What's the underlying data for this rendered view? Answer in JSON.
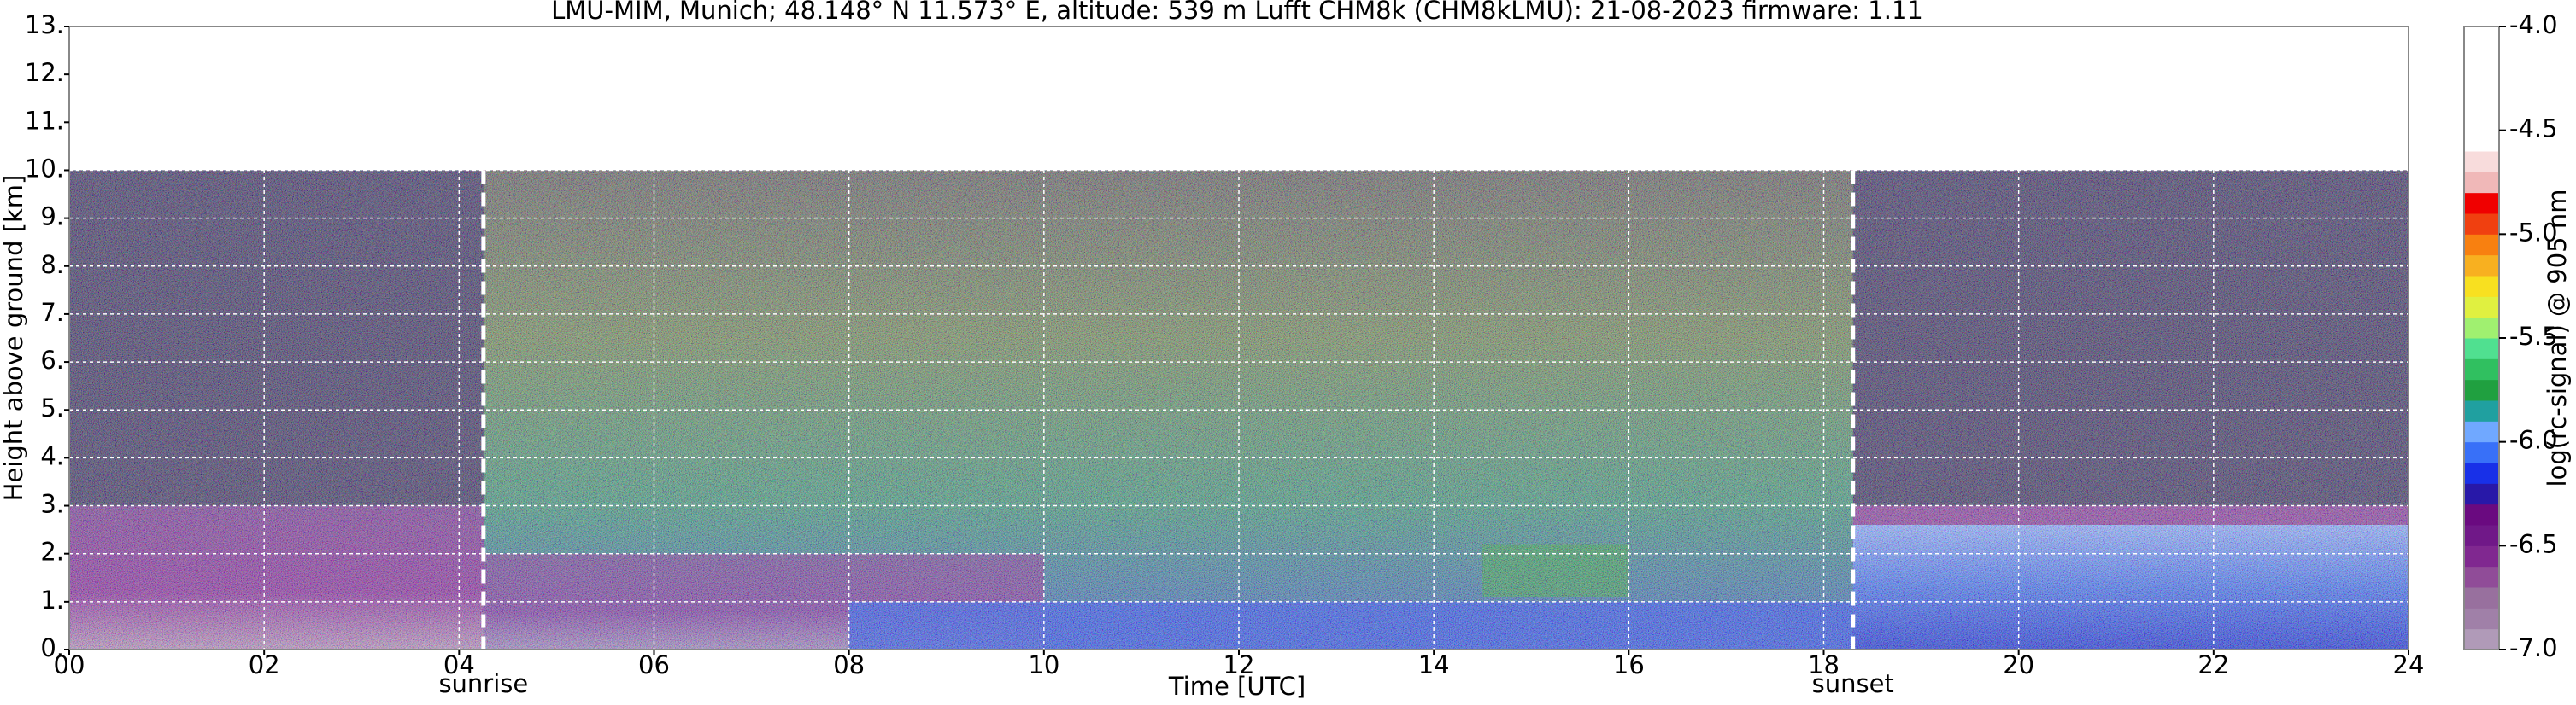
{
  "chart_data": {
    "type": "heatmap",
    "title": "LMU-MIM, Munich; 48.148° N 11.573° E, altitude: 539 m    Lufft CHM8k (CHM8kLMU): 21-08-2023    firmware: 1.11",
    "x_label": "Time [UTC]",
    "y_label": "Height above ground [km]",
    "colorbar_label": "log(rc-signal) @ 905 nm",
    "xlim": [
      0,
      24
    ],
    "xticks": [
      {
        "value": 0,
        "label": "00"
      },
      {
        "value": 2,
        "label": "02"
      },
      {
        "value": 4,
        "label": "04"
      },
      {
        "value": 6,
        "label": "06"
      },
      {
        "value": 8,
        "label": "08"
      },
      {
        "value": 10,
        "label": "10"
      },
      {
        "value": 12,
        "label": "12"
      },
      {
        "value": 14,
        "label": "14"
      },
      {
        "value": 16,
        "label": "16"
      },
      {
        "value": 18,
        "label": "18"
      },
      {
        "value": 20,
        "label": "20"
      },
      {
        "value": 22,
        "label": "22"
      },
      {
        "value": 24,
        "label": "24"
      }
    ],
    "ylim": [
      0,
      13
    ],
    "yticks": [
      {
        "value": 0,
        "label": "0."
      },
      {
        "value": 1,
        "label": "1."
      },
      {
        "value": 2,
        "label": "2."
      },
      {
        "value": 3,
        "label": "3."
      },
      {
        "value": 4,
        "label": "4."
      },
      {
        "value": 5,
        "label": "5."
      },
      {
        "value": 6,
        "label": "6."
      },
      {
        "value": 7,
        "label": "7."
      },
      {
        "value": 8,
        "label": "8."
      },
      {
        "value": 9,
        "label": "9."
      },
      {
        "value": 10,
        "label": "10."
      },
      {
        "value": 11,
        "label": "11."
      },
      {
        "value": 12,
        "label": "12."
      },
      {
        "value": 13,
        "label": "13."
      }
    ],
    "max_range": 10,
    "clim": [
      -7.0,
      -4.0
    ],
    "cticks": [
      {
        "value": -7.0,
        "label": "-7.0"
      },
      {
        "value": -6.5,
        "label": "-6.5"
      },
      {
        "value": -6.0,
        "label": "-6.0"
      },
      {
        "value": -5.5,
        "label": "-5.5"
      },
      {
        "value": -5.0,
        "label": "-5.0"
      },
      {
        "value": -4.5,
        "label": "-4.5"
      },
      {
        "value": -4.0,
        "label": "-4.0"
      }
    ],
    "colormap": [
      "#b09ab8",
      "#a080a8",
      "#98709e",
      "#904c98",
      "#802890",
      "#701888",
      "#6a0a80",
      "#2818a8",
      "#1830e8",
      "#3870f8",
      "#70a8ff",
      "#20a0a0",
      "#20a040",
      "#30c060",
      "#50e090",
      "#a0f070",
      "#e0f040",
      "#f8e020",
      "#f8b020",
      "#f88010",
      "#f04010",
      "#f00000",
      "#f0b8b8",
      "#f8dcdc",
      "#ffffff",
      "#ffffff",
      "#ffffff",
      "#ffffff",
      "#ffffff",
      "#ffffff"
    ],
    "grid": true,
    "annotations": [
      {
        "x": 4.25,
        "label": "sunrise"
      },
      {
        "x": 18.3,
        "label": "sunset"
      }
    ]
  }
}
